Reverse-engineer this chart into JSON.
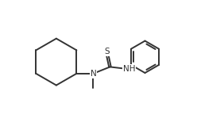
{
  "bg_color": "#ffffff",
  "line_color": "#333333",
  "line_width": 1.4,
  "fig_width": 2.82,
  "fig_height": 1.59,
  "dpi": 100,
  "xlim": [
    0,
    10
  ],
  "ylim": [
    0,
    5.5
  ]
}
